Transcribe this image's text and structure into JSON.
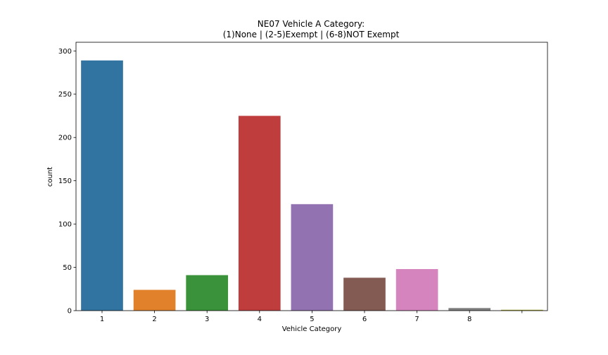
{
  "chart_data": {
    "type": "bar",
    "title_lines": [
      "NE07 Vehicle A Category:",
      "(1)None | (2-5)Exempt | (6-8)NOT Exempt"
    ],
    "xlabel": "Vehicle Category",
    "ylabel": "count",
    "categories": [
      "1",
      "2",
      "3",
      "4",
      "5",
      "6",
      "7",
      "8",
      ""
    ],
    "values": [
      289,
      24,
      41,
      225,
      123,
      38,
      48,
      3,
      1
    ],
    "colors": [
      "#3274a1",
      "#e1812c",
      "#3a923a",
      "#c03d3e",
      "#9372b2",
      "#845b53",
      "#d684bd",
      "#7f7f7f",
      "#a9aa35"
    ],
    "ylim": [
      0,
      310
    ],
    "yticks": [
      0,
      50,
      100,
      150,
      200,
      250,
      300
    ],
    "grid": false,
    "legend": "none"
  }
}
